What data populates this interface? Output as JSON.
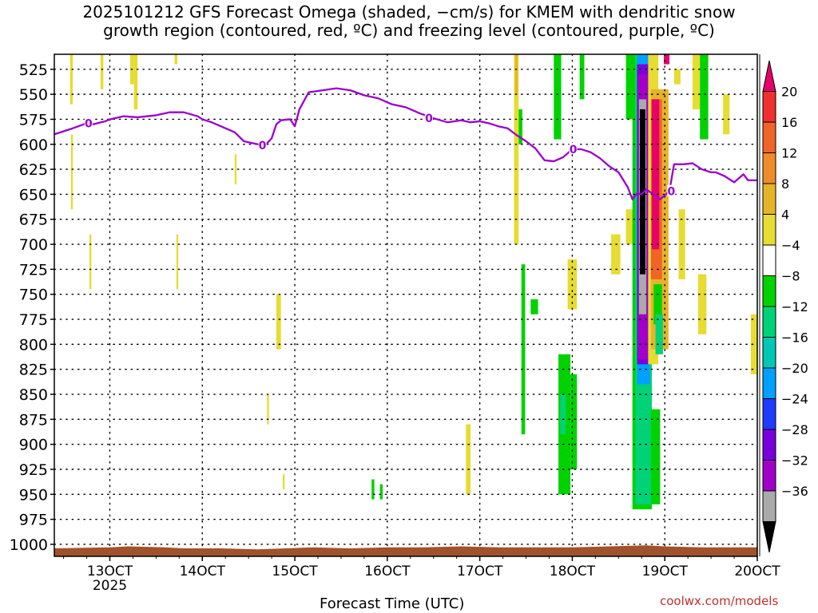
{
  "chart_data": {
    "type": "heatmap",
    "title_line1": "2025101212 GFS Forecast Omega (shaded, −cm/s) for KMEM with dendritic snow",
    "title_line2": "growth region (contoured, red, ºC) and freezing level (contoured, purple, ºC)",
    "xlabel": "Forecast Time (UTC)",
    "x_tick_labels": [
      "13OCT",
      "14OCT",
      "15OCT",
      "16OCT",
      "17OCT",
      "18OCT",
      "19OCT",
      "20OCT"
    ],
    "x_tick_values": [
      13,
      14,
      15,
      16,
      17,
      18,
      19,
      20
    ],
    "x_sublabel": "2025",
    "xlim": [
      12.4,
      20.0
    ],
    "y_tick_labels": [
      "525",
      "550",
      "575",
      "600",
      "625",
      "650",
      "675",
      "700",
      "725",
      "750",
      "775",
      "800",
      "825",
      "850",
      "875",
      "900",
      "925",
      "950",
      "975",
      "1000"
    ],
    "y_tick_values": [
      525,
      550,
      575,
      600,
      625,
      650,
      675,
      700,
      725,
      750,
      775,
      800,
      825,
      850,
      875,
      900,
      925,
      950,
      975,
      1000
    ],
    "ylim": [
      510,
      1012
    ],
    "grid": true,
    "colorbar": {
      "labels": [
        "20",
        "16",
        "12",
        "8",
        "4",
        "−4",
        "−8",
        "−12",
        "−16",
        "−20",
        "−24",
        "−28",
        "−32",
        "−36"
      ],
      "colors": [
        "#e8006a",
        "#f03030",
        "#f06428",
        "#f08c28",
        "#e6b428",
        "#e6dc32",
        "#ffffff",
        "#00d200",
        "#00d278",
        "#00c8b4",
        "#00a0ff",
        "#1e3cff",
        "#7800dc",
        "#a000c8",
        "#aaaaaa",
        "#000000"
      ]
    },
    "freezing_level": {
      "label": "0",
      "color": "#9a00d0",
      "x": [
        12.4,
        12.6,
        12.75,
        12.82,
        12.95,
        13.0,
        13.15,
        13.3,
        13.5,
        13.65,
        13.8,
        13.95,
        14.0,
        14.1,
        14.2,
        14.35,
        14.45,
        14.6,
        14.68,
        14.75,
        14.8,
        14.85,
        14.95,
        15.0,
        15.05,
        15.15,
        15.3,
        15.45,
        15.6,
        15.75,
        15.9,
        16.05,
        16.2,
        16.35,
        16.5,
        16.65,
        16.8,
        16.9,
        17.0,
        17.1,
        17.2,
        17.3,
        17.4,
        17.5,
        17.6,
        17.7,
        17.8,
        17.9,
        18.0,
        18.1,
        18.2,
        18.3,
        18.4,
        18.5,
        18.6,
        18.65,
        18.7,
        18.75,
        18.8,
        18.95,
        19.05,
        19.1,
        19.2,
        19.3,
        19.4,
        19.5,
        19.55,
        19.65,
        19.75,
        19.85,
        19.9,
        20.0
      ],
      "p": [
        590,
        584,
        579,
        580,
        577,
        575,
        572,
        573,
        571,
        568,
        568,
        572,
        575,
        578,
        582,
        588,
        597,
        600,
        601,
        594,
        580,
        576,
        575,
        582,
        565,
        548,
        546,
        544,
        546,
        551,
        554,
        560,
        563,
        569,
        574,
        578,
        576,
        578,
        577,
        579,
        582,
        584,
        591,
        597,
        604,
        616,
        617,
        613,
        605,
        605,
        608,
        614,
        622,
        628,
        643,
        655,
        649,
        650,
        645,
        655,
        647,
        620,
        620,
        619,
        625,
        628,
        628,
        632,
        638,
        630,
        636,
        636
      ]
    },
    "omega_patches": [
      {
        "t0": 12.57,
        "t1": 12.6,
        "p0": 510,
        "p1": 560,
        "level": "4"
      },
      {
        "t0": 12.9,
        "t1": 12.93,
        "p0": 510,
        "p1": 545,
        "level": "4"
      },
      {
        "t0": 12.58,
        "t1": 12.6,
        "p0": 590,
        "p1": 665,
        "level": "4"
      },
      {
        "t0": 13.22,
        "t1": 13.26,
        "p0": 510,
        "p1": 540,
        "level": "4"
      },
      {
        "t0": 13.26,
        "t1": 13.3,
        "p0": 510,
        "p1": 565,
        "level": "4"
      },
      {
        "t0": 13.7,
        "t1": 13.73,
        "p0": 510,
        "p1": 520,
        "level": "4"
      },
      {
        "t0": 12.78,
        "t1": 12.8,
        "p0": 690,
        "p1": 745,
        "level": "4"
      },
      {
        "t0": 13.72,
        "t1": 13.74,
        "p0": 690,
        "p1": 745,
        "level": "4"
      },
      {
        "t0": 14.35,
        "t1": 14.37,
        "p0": 610,
        "p1": 640,
        "level": "4"
      },
      {
        "t0": 14.8,
        "t1": 14.85,
        "p0": 750,
        "p1": 805,
        "level": "4"
      },
      {
        "t0": 14.7,
        "t1": 14.72,
        "p0": 850,
        "p1": 880,
        "level": "4"
      },
      {
        "t0": 14.87,
        "t1": 14.89,
        "p0": 930,
        "p1": 945,
        "level": "4"
      },
      {
        "t0": 15.83,
        "t1": 15.86,
        "p0": 935,
        "p1": 955,
        "level": "-4"
      },
      {
        "t0": 15.92,
        "t1": 15.95,
        "p0": 940,
        "p1": 955,
        "level": "-4"
      },
      {
        "t0": 16.85,
        "t1": 16.9,
        "p0": 880,
        "p1": 950,
        "level": "4"
      },
      {
        "t0": 17.37,
        "t1": 17.42,
        "p0": 510,
        "p1": 700,
        "level": "4"
      },
      {
        "t0": 17.38,
        "t1": 17.41,
        "p0": 510,
        "p1": 550,
        "level": "8"
      },
      {
        "t0": 17.42,
        "t1": 17.46,
        "p0": 565,
        "p1": 600,
        "level": "-4"
      },
      {
        "t0": 17.45,
        "t1": 17.49,
        "p0": 720,
        "p1": 890,
        "level": "-4"
      },
      {
        "t0": 17.55,
        "t1": 17.63,
        "p0": 755,
        "p1": 770,
        "level": "-4"
      },
      {
        "t0": 17.8,
        "t1": 17.88,
        "p0": 510,
        "p1": 595,
        "level": "-4"
      },
      {
        "t0": 17.85,
        "t1": 17.98,
        "p0": 810,
        "p1": 950,
        "level": "-4"
      },
      {
        "t0": 17.87,
        "t1": 17.93,
        "p0": 850,
        "p1": 890,
        "level": "-8"
      },
      {
        "t0": 17.98,
        "t1": 18.05,
        "p0": 830,
        "p1": 925,
        "level": "-4"
      },
      {
        "t0": 17.95,
        "t1": 18.05,
        "p0": 715,
        "p1": 765,
        "level": "4"
      },
      {
        "t0": 18.08,
        "t1": 18.13,
        "p0": 510,
        "p1": 555,
        "level": "-4"
      },
      {
        "t0": 18.42,
        "t1": 18.52,
        "p0": 690,
        "p1": 730,
        "level": "4"
      },
      {
        "t0": 18.58,
        "t1": 18.66,
        "p0": 510,
        "p1": 575,
        "level": "-4"
      },
      {
        "t0": 18.58,
        "t1": 18.66,
        "p0": 665,
        "p1": 700,
        "level": "4"
      },
      {
        "t0": 18.65,
        "t1": 18.86,
        "p0": 510,
        "p1": 965,
        "level": "-4"
      },
      {
        "t0": 18.68,
        "t1": 18.86,
        "p0": 510,
        "p1": 960,
        "level": "-8"
      },
      {
        "t0": 18.7,
        "t1": 18.84,
        "p0": 510,
        "p1": 840,
        "level": "-16"
      },
      {
        "t0": 18.7,
        "t1": 18.83,
        "p0": 520,
        "p1": 820,
        "level": "-24"
      },
      {
        "t0": 18.71,
        "t1": 18.82,
        "p0": 530,
        "p1": 815,
        "level": "-28"
      },
      {
        "t0": 18.72,
        "t1": 18.8,
        "p0": 555,
        "p1": 770,
        "level": "-32"
      },
      {
        "t0": 18.73,
        "t1": 18.79,
        "p0": 565,
        "p1": 730,
        "level": "-36"
      },
      {
        "t0": 18.82,
        "t1": 18.93,
        "p0": 510,
        "p1": 820,
        "level": "4"
      },
      {
        "t0": 18.85,
        "t1": 19.04,
        "p0": 545,
        "p1": 805,
        "level": "8"
      },
      {
        "t0": 18.85,
        "t1": 18.97,
        "p0": 555,
        "p1": 735,
        "level": "12"
      },
      {
        "t0": 18.86,
        "t1": 18.94,
        "p0": 555,
        "p1": 705,
        "level": "20"
      },
      {
        "t0": 18.88,
        "t1": 18.97,
        "p0": 740,
        "p1": 780,
        "level": "-4"
      },
      {
        "t0": 18.9,
        "t1": 18.98,
        "p0": 770,
        "p1": 810,
        "level": "-8"
      },
      {
        "t0": 18.85,
        "t1": 18.95,
        "p0": 865,
        "p1": 960,
        "level": "-4"
      },
      {
        "t0": 18.99,
        "t1": 19.05,
        "p0": 510,
        "p1": 520,
        "level": "20"
      },
      {
        "t0": 19.1,
        "t1": 19.17,
        "p0": 525,
        "p1": 540,
        "level": "4"
      },
      {
        "t0": 19.15,
        "t1": 19.22,
        "p0": 665,
        "p1": 735,
        "level": "4"
      },
      {
        "t0": 19.3,
        "t1": 19.38,
        "p0": 510,
        "p1": 565,
        "level": "4"
      },
      {
        "t0": 19.38,
        "t1": 19.47,
        "p0": 510,
        "p1": 595,
        "level": "-4"
      },
      {
        "t0": 19.36,
        "t1": 19.45,
        "p0": 730,
        "p1": 790,
        "level": "4"
      },
      {
        "t0": 19.63,
        "t1": 19.7,
        "p0": 550,
        "p1": 590,
        "level": "4"
      },
      {
        "t0": 19.93,
        "t1": 20.0,
        "p0": 770,
        "p1": 830,
        "level": "4"
      }
    ],
    "terrain": {
      "color": "#a0522d"
    }
  },
  "watermark": "coolwx.com/models"
}
